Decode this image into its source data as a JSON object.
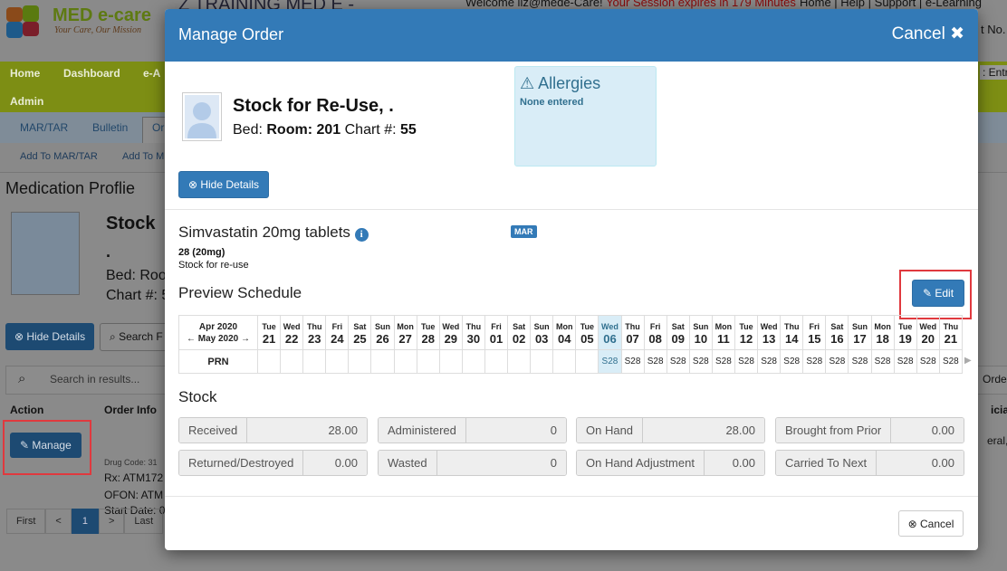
{
  "app": {
    "logo": {
      "brand": "MED e-care",
      "tagline": "Your Care, Our Mission"
    },
    "facility": "Z TRAINING MED E -",
    "welcome": "Welcome liz@mede-Care!",
    "session": "Your Session expires in 179 Minutes",
    "top_links": [
      "Home",
      "Help",
      "Support",
      "e-Learning"
    ],
    "account_fragment": "t No. :",
    "nav": [
      "Home",
      "Dashboard",
      "e-A",
      "Admin"
    ],
    "nav_right": ": Entry",
    "tabs": [
      "MAR/TAR",
      "Bulletin",
      "Or"
    ],
    "subtabs": [
      "Add To MAR/TAR",
      "Add To M"
    ],
    "page_title": "Medication Proflie",
    "patient": {
      "name": "Stock",
      "line2": ".",
      "bed": "Bed: Roo",
      "chart": "Chart #: 5"
    },
    "buttons": {
      "hide_details": "Hide Details",
      "search": "Search F"
    },
    "search_placeholder": "Search in results...",
    "search_right": "Orde",
    "table": {
      "headers": [
        "Action",
        "Order Info",
        "ician"
      ],
      "row": {
        "action": "Manage",
        "info": [
          "Drug Code: 31",
          "Rx: ATM172",
          "OFON: ATM",
          "Start Date: 0"
        ],
        "right": "eral, De"
      }
    },
    "pagination": [
      "First",
      "<",
      "1",
      ">",
      "Last"
    ]
  },
  "modal": {
    "title": "Manage Order",
    "cancel": "Cancel",
    "patient": {
      "name": "Stock for Re-Use, .",
      "bed_label": "Bed:",
      "room": "Room: 201",
      "chart_label": "Chart #:",
      "chart": "55"
    },
    "allergies": {
      "title": "Allergies",
      "text": "None entered"
    },
    "hide_details": "Hide Details",
    "medication": {
      "name": "Simvastatin 20mg tablets",
      "badge": "MAR",
      "quantity": "28 (20mg)",
      "note": "Stock for re-use"
    },
    "schedule": {
      "title": "Preview Schedule",
      "edit": "Edit",
      "months": [
        "Apr 2020",
        "May 2020"
      ],
      "days": [
        {
          "weekday": "Tue",
          "date": "21"
        },
        {
          "weekday": "Wed",
          "date": "22"
        },
        {
          "weekday": "Thu",
          "date": "23"
        },
        {
          "weekday": "Fri",
          "date": "24"
        },
        {
          "weekday": "Sat",
          "date": "25"
        },
        {
          "weekday": "Sun",
          "date": "26"
        },
        {
          "weekday": "Mon",
          "date": "27"
        },
        {
          "weekday": "Tue",
          "date": "28"
        },
        {
          "weekday": "Wed",
          "date": "29"
        },
        {
          "weekday": "Thu",
          "date": "30"
        },
        {
          "weekday": "Fri",
          "date": "01"
        },
        {
          "weekday": "Sat",
          "date": "02"
        },
        {
          "weekday": "Sun",
          "date": "03"
        },
        {
          "weekday": "Mon",
          "date": "04"
        },
        {
          "weekday": "Tue",
          "date": "05"
        },
        {
          "weekday": "Wed",
          "date": "06"
        },
        {
          "weekday": "Thu",
          "date": "07"
        },
        {
          "weekday": "Fri",
          "date": "08"
        },
        {
          "weekday": "Sat",
          "date": "09"
        },
        {
          "weekday": "Sun",
          "date": "10"
        },
        {
          "weekday": "Mon",
          "date": "11"
        },
        {
          "weekday": "Tue",
          "date": "12"
        },
        {
          "weekday": "Wed",
          "date": "13"
        },
        {
          "weekday": "Thu",
          "date": "14"
        },
        {
          "weekday": "Fri",
          "date": "15"
        },
        {
          "weekday": "Sat",
          "date": "16"
        },
        {
          "weekday": "Sun",
          "date": "17"
        },
        {
          "weekday": "Mon",
          "date": "18"
        },
        {
          "weekday": "Tue",
          "date": "19"
        },
        {
          "weekday": "Wed",
          "date": "20"
        },
        {
          "weekday": "Thu",
          "date": "21"
        }
      ],
      "rows": [
        {
          "label": "PRN",
          "cells": [
            null,
            null,
            null,
            null,
            null,
            null,
            null,
            null,
            null,
            null,
            null,
            null,
            null,
            null,
            null,
            "S28",
            "S28",
            "S28",
            "S28",
            "S28",
            "S28",
            "S28",
            "S28",
            "S28",
            "S28",
            "S28",
            "S28",
            "S28",
            "S28",
            "S28",
            "S28"
          ]
        }
      ]
    },
    "stock": {
      "title": "Stock",
      "fields": [
        {
          "label": "Received",
          "value": "28.00"
        },
        {
          "label": "Administered",
          "value": "0"
        },
        {
          "label": "On Hand",
          "value": "28.00"
        },
        {
          "label": "Brought from Prior",
          "value": "0.00"
        },
        {
          "label": "Returned/Destroyed",
          "value": "0.00"
        },
        {
          "label": "Wasted",
          "value": "0"
        },
        {
          "label": "On Hand Adjustment",
          "value": "0.00"
        },
        {
          "label": "Carried To Next",
          "value": "0.00"
        }
      ]
    },
    "footer_cancel": "Cancel"
  }
}
